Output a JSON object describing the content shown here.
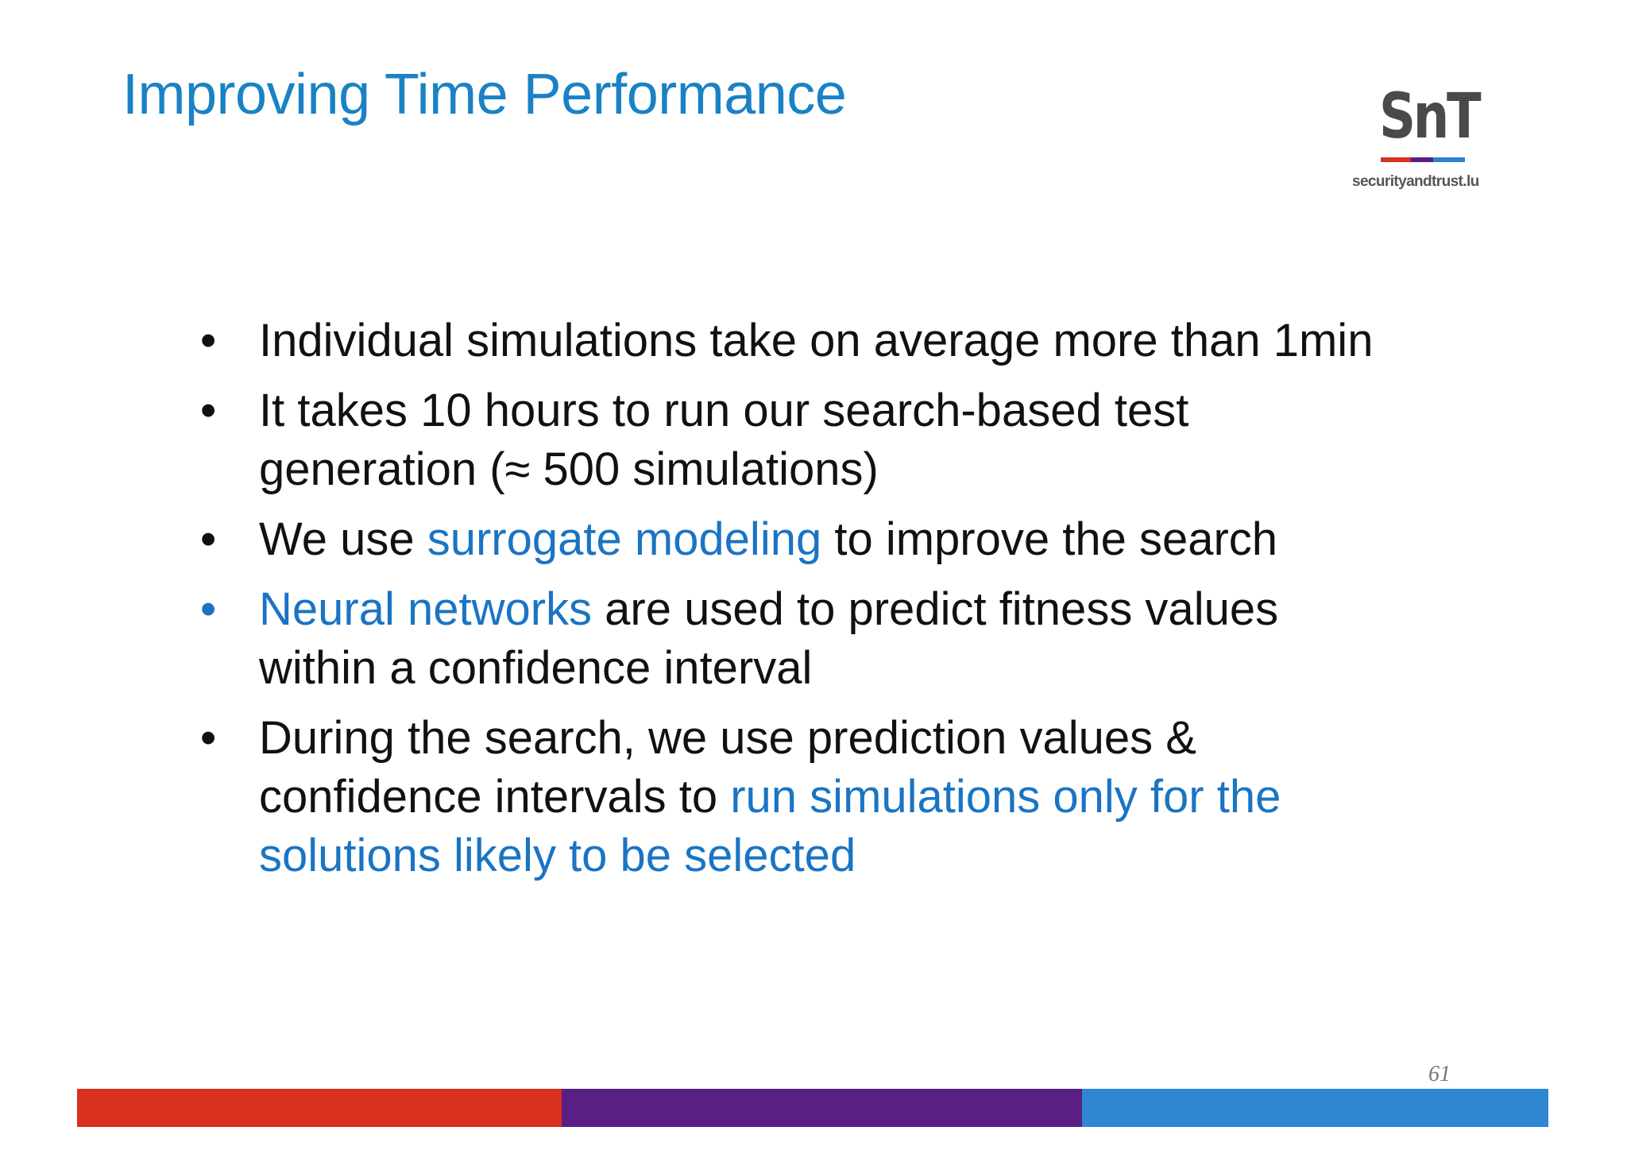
{
  "slide": {
    "title": "Improving Time Performance",
    "logo": {
      "mark": "SnT",
      "subtitle": "securityandtrust.lu"
    },
    "bullets": [
      {
        "parts": [
          {
            "text": "Individual simulations take on average more than 1min",
            "highlight": false
          }
        ],
        "bullet_highlight": false
      },
      {
        "parts": [
          {
            "text": "It takes 10 hours to run our search-based test generation (≈ 500 simulations)",
            "highlight": false
          }
        ],
        "bullet_highlight": false
      },
      {
        "parts": [
          {
            "text": "We use ",
            "highlight": false
          },
          {
            "text": "surrogate modeling",
            "highlight": true
          },
          {
            "text": " to improve the search",
            "highlight": false
          }
        ],
        "bullet_highlight": false
      },
      {
        "parts": [
          {
            "text": "Neural networks",
            "highlight": true
          },
          {
            "text": " are used to predict fitness values within a confidence interval",
            "highlight": false
          }
        ],
        "bullet_highlight": true
      },
      {
        "parts": [
          {
            "text": "During the search, we use prediction values & confidence intervals to ",
            "highlight": false
          },
          {
            "text": "run simulations only for the solutions likely to be selected",
            "highlight": true
          }
        ],
        "bullet_highlight": false
      }
    ],
    "page_number": "61"
  },
  "colors": {
    "title": "#1a82c4",
    "highlight": "#1a74c4",
    "body_text": "#111111",
    "footer_red": "#d9301f",
    "footer_purple": "#5a1f85",
    "footer_blue": "#2f86d2"
  }
}
